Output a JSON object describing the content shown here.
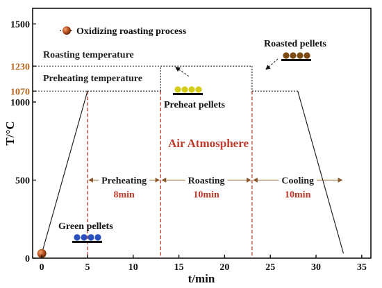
{
  "chart_data": {
    "type": "line",
    "xlabel": "t/min",
    "ylabel": "T/°C",
    "xlim": [
      -1,
      36
    ],
    "ylim": [
      0,
      1600
    ],
    "x_ticks": [
      0,
      5,
      10,
      15,
      20,
      25,
      30,
      35
    ],
    "y_ticks": [
      0,
      500,
      1000,
      1500
    ],
    "y_special_ticks": [
      {
        "value": 1070,
        "label": "1070",
        "color": "#b5651d"
      },
      {
        "value": 1230,
        "label": "1230",
        "color": "#b5651d"
      }
    ],
    "legend": {
      "label": "Oxidizing roasting process",
      "position": "top-left"
    },
    "series": [
      {
        "name": "Oxidizing roasting process",
        "points": [
          [
            0,
            30
          ],
          [
            5,
            1070
          ],
          [
            13,
            1070
          ],
          [
            13,
            1230
          ],
          [
            23,
            1230
          ],
          [
            23,
            1070
          ],
          [
            28,
            1070
          ],
          [
            33,
            30
          ]
        ],
        "dashed_segments": [
          [
            1,
            2
          ],
          [
            2,
            3
          ],
          [
            3,
            4
          ],
          [
            4,
            5
          ],
          [
            5,
            6
          ]
        ]
      }
    ],
    "reference_lines": [
      {
        "label": "Roasting temperature",
        "y": 1230
      },
      {
        "label": "Preheating temperature",
        "y": 1070
      }
    ],
    "stage_boundaries": [
      5,
      13,
      23
    ],
    "stages": [
      {
        "label": "Preheating",
        "time": "8min",
        "x_start": 5,
        "x_end": 13
      },
      {
        "label": "Roasting",
        "time": "10min",
        "x_start": 13,
        "x_end": 23
      },
      {
        "label": "Cooling",
        "time": "10min",
        "x_start": 23,
        "x_end": 33
      }
    ],
    "annotations": [
      {
        "label": "Green pellets",
        "color": "#2a4fbf"
      },
      {
        "label": "Preheat pellets",
        "color": "#d4cc1a"
      },
      {
        "label": "Roasted pellets",
        "color": "#7a4a10"
      },
      {
        "label": "Air Atmosphere",
        "color": "#c0392b"
      }
    ],
    "grid": false
  },
  "colors": {
    "axis": "#111111",
    "profile_line": "#222222",
    "stage_divider": "#c0392b",
    "stage_arrow": "#8b5a2b",
    "marker": "#a0411d"
  }
}
